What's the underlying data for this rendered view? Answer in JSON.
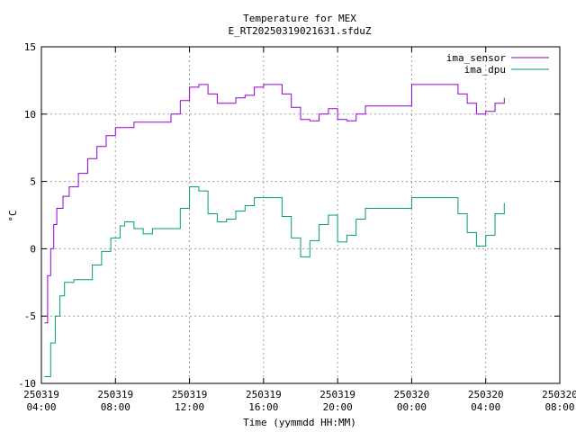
{
  "chart_data": {
    "type": "line",
    "title": "Temperature for MEX",
    "subtitle": "E_RT20250319021631.sfduZ",
    "xlabel": "Time (yymmdd HH:MM)",
    "ylabel": "°C",
    "ylim": [
      -10,
      15
    ],
    "yticks": [
      -10,
      -5,
      0,
      5,
      10,
      15
    ],
    "xlim": [
      "2025-03-19 04:00",
      "2025-03-20 08:00"
    ],
    "xticks": [
      {
        "date": "250319",
        "time": "04:00"
      },
      {
        "date": "250319",
        "time": "08:00"
      },
      {
        "date": "250319",
        "time": "12:00"
      },
      {
        "date": "250319",
        "time": "16:00"
      },
      {
        "date": "250319",
        "time": "20:00"
      },
      {
        "date": "250320",
        "time": "00:00"
      },
      {
        "date": "250320",
        "time": "04:00"
      },
      {
        "date": "250320",
        "time": "08:00"
      }
    ],
    "grid": true,
    "legend_position": "top-right",
    "series": [
      {
        "name": "ima_sensor",
        "color": "#9400d3",
        "points": [
          [
            "2025-03-19 04:10",
            -5.5
          ],
          [
            "2025-03-19 04:20",
            -2.0
          ],
          [
            "2025-03-19 04:30",
            0.0
          ],
          [
            "2025-03-19 04:40",
            1.8
          ],
          [
            "2025-03-19 04:50",
            3.0
          ],
          [
            "2025-03-19 05:10",
            3.9
          ],
          [
            "2025-03-19 05:30",
            4.6
          ],
          [
            "2025-03-19 06:00",
            5.6
          ],
          [
            "2025-03-19 06:30",
            6.7
          ],
          [
            "2025-03-19 07:00",
            7.6
          ],
          [
            "2025-03-19 07:30",
            8.4
          ],
          [
            "2025-03-19 08:00",
            9.0
          ],
          [
            "2025-03-19 08:30",
            9.0
          ],
          [
            "2025-03-19 09:00",
            9.4
          ],
          [
            "2025-03-19 10:00",
            9.4
          ],
          [
            "2025-03-19 11:00",
            10.0
          ],
          [
            "2025-03-19 11:30",
            11.0
          ],
          [
            "2025-03-19 12:00",
            12.0
          ],
          [
            "2025-03-19 12:30",
            12.2
          ],
          [
            "2025-03-19 13:00",
            11.5
          ],
          [
            "2025-03-19 13:30",
            10.8
          ],
          [
            "2025-03-19 14:00",
            10.8
          ],
          [
            "2025-03-19 14:30",
            11.2
          ],
          [
            "2025-03-19 15:00",
            11.4
          ],
          [
            "2025-03-19 15:30",
            12.0
          ],
          [
            "2025-03-19 16:00",
            12.2
          ],
          [
            "2025-03-19 16:30",
            12.2
          ],
          [
            "2025-03-19 17:00",
            11.5
          ],
          [
            "2025-03-19 17:30",
            10.5
          ],
          [
            "2025-03-19 18:00",
            9.6
          ],
          [
            "2025-03-19 18:30",
            9.5
          ],
          [
            "2025-03-19 19:00",
            10.0
          ],
          [
            "2025-03-19 19:30",
            10.4
          ],
          [
            "2025-03-19 20:00",
            9.6
          ],
          [
            "2025-03-19 20:30",
            9.5
          ],
          [
            "2025-03-19 21:00",
            10.0
          ],
          [
            "2025-03-19 21:30",
            10.6
          ],
          [
            "2025-03-20 00:00",
            12.2
          ],
          [
            "2025-03-20 02:00",
            12.2
          ],
          [
            "2025-03-20 02:30",
            11.5
          ],
          [
            "2025-03-20 03:00",
            10.8
          ],
          [
            "2025-03-20 03:30",
            10.0
          ],
          [
            "2025-03-20 04:00",
            10.2
          ],
          [
            "2025-03-20 04:30",
            10.8
          ],
          [
            "2025-03-20 05:00",
            11.2
          ]
        ]
      },
      {
        "name": "ima_dpu",
        "color": "#009e73",
        "points": [
          [
            "2025-03-19 04:10",
            -9.5
          ],
          [
            "2025-03-19 04:30",
            -7.0
          ],
          [
            "2025-03-19 04:45",
            -5.0
          ],
          [
            "2025-03-19 05:00",
            -3.5
          ],
          [
            "2025-03-19 05:15",
            -2.5
          ],
          [
            "2025-03-19 05:45",
            -2.3
          ],
          [
            "2025-03-19 06:15",
            -2.3
          ],
          [
            "2025-03-19 06:45",
            -1.2
          ],
          [
            "2025-03-19 07:15",
            -0.2
          ],
          [
            "2025-03-19 07:45",
            0.8
          ],
          [
            "2025-03-19 08:15",
            1.7
          ],
          [
            "2025-03-19 08:30",
            2.0
          ],
          [
            "2025-03-19 09:00",
            1.5
          ],
          [
            "2025-03-19 09:30",
            1.1
          ],
          [
            "2025-03-19 10:00",
            1.5
          ],
          [
            "2025-03-19 11:00",
            1.5
          ],
          [
            "2025-03-19 11:30",
            3.0
          ],
          [
            "2025-03-19 12:00",
            4.6
          ],
          [
            "2025-03-19 12:30",
            4.3
          ],
          [
            "2025-03-19 13:00",
            2.6
          ],
          [
            "2025-03-19 13:30",
            2.0
          ],
          [
            "2025-03-19 14:00",
            2.2
          ],
          [
            "2025-03-19 14:30",
            2.8
          ],
          [
            "2025-03-19 15:00",
            3.2
          ],
          [
            "2025-03-19 15:30",
            3.8
          ],
          [
            "2025-03-19 16:00",
            3.8
          ],
          [
            "2025-03-19 16:30",
            3.8
          ],
          [
            "2025-03-19 17:00",
            2.4
          ],
          [
            "2025-03-19 17:30",
            0.8
          ],
          [
            "2025-03-19 18:00",
            -0.6
          ],
          [
            "2025-03-19 18:30",
            0.6
          ],
          [
            "2025-03-19 19:00",
            1.8
          ],
          [
            "2025-03-19 19:30",
            2.5
          ],
          [
            "2025-03-19 20:00",
            0.5
          ],
          [
            "2025-03-19 20:30",
            1.0
          ],
          [
            "2025-03-19 21:00",
            2.2
          ],
          [
            "2025-03-19 21:30",
            3.0
          ],
          [
            "2025-03-20 00:00",
            3.8
          ],
          [
            "2025-03-20 02:00",
            3.8
          ],
          [
            "2025-03-20 02:30",
            2.6
          ],
          [
            "2025-03-20 03:00",
            1.2
          ],
          [
            "2025-03-20 03:30",
            0.2
          ],
          [
            "2025-03-20 04:00",
            1.0
          ],
          [
            "2025-03-20 04:30",
            2.6
          ],
          [
            "2025-03-20 05:00",
            3.4
          ]
        ]
      }
    ]
  }
}
